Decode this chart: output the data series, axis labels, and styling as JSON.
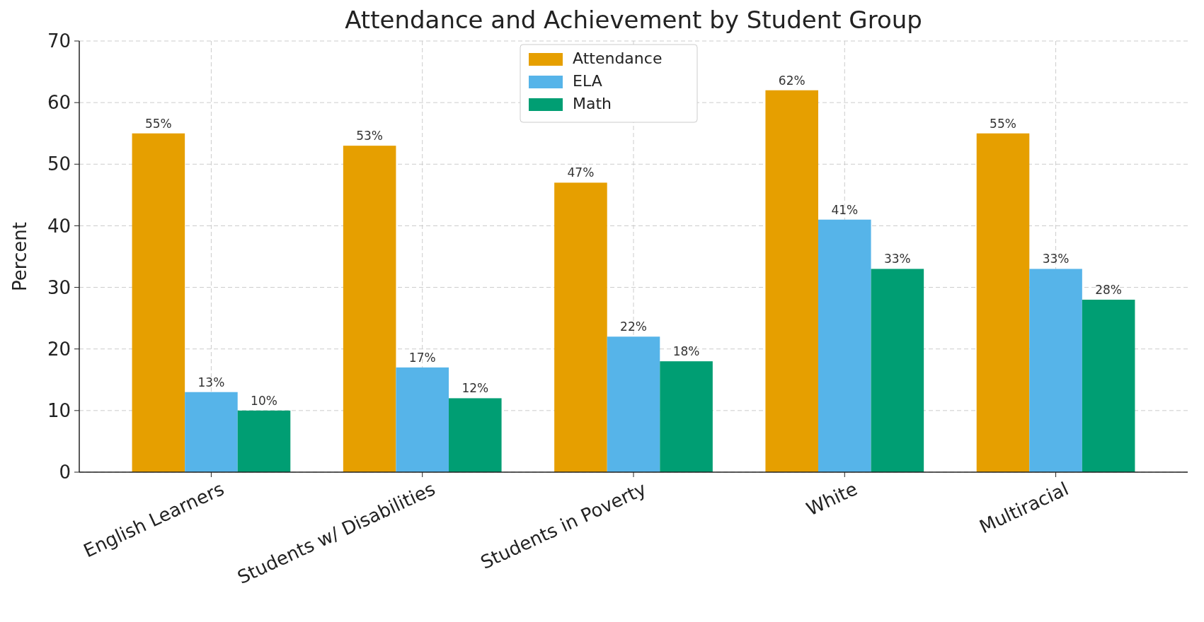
{
  "chart_data": {
    "type": "bar",
    "title": "Attendance and Achievement by Student Group",
    "ylabel": "Percent",
    "categories": [
      "English Learners",
      "Students w/ Disabilities",
      "Students in Poverty",
      "White",
      "Multiracial"
    ],
    "series": [
      {
        "name": "Attendance",
        "color": "#e69f00",
        "values": [
          55,
          53,
          47,
          62,
          55
        ],
        "value_labels": [
          "55%",
          "53%",
          "47%",
          "62%",
          "55%"
        ]
      },
      {
        "name": "ELA",
        "color": "#56b4e9",
        "values": [
          13,
          17,
          22,
          41,
          33
        ],
        "value_labels": [
          "13%",
          "17%",
          "22%",
          "41%",
          "33%"
        ]
      },
      {
        "name": "Math",
        "color": "#009e73",
        "values": [
          10,
          12,
          18,
          33,
          28
        ],
        "value_labels": [
          "10%",
          "12%",
          "18%",
          "33%",
          "28%"
        ]
      }
    ],
    "ylim": [
      0,
      70
    ],
    "yticks": [
      0,
      10,
      20,
      30,
      40,
      50,
      60,
      70
    ],
    "grid": true,
    "legend": "top"
  }
}
